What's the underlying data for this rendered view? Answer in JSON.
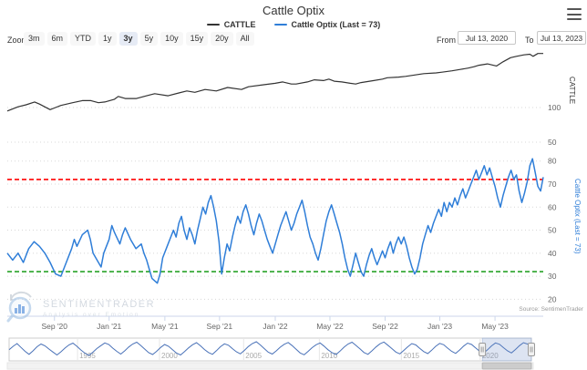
{
  "header": {
    "title": "Cattle Optix"
  },
  "legend": {
    "items": [
      {
        "label": "CATTLE",
        "color": "#333333"
      },
      {
        "label": "Cattle Optix (Last = 73)",
        "color": "#2f7ed8"
      }
    ]
  },
  "toolbar": {
    "zoom_label": "Zoom",
    "ranges": [
      "3m",
      "6m",
      "YTD",
      "1y",
      "3y",
      "5y",
      "10y",
      "15y",
      "20y",
      "All"
    ],
    "selected": "3y",
    "from_label": "From",
    "from_value": "Jul 13, 2020",
    "to_label": "To",
    "to_value": "Jul 13, 2023"
  },
  "source": "Source: SentimenTrader",
  "watermark": {
    "name": "SENTIMENTRADER",
    "tagline": "Analysis over Emotion"
  },
  "chart_data": {
    "type": "line",
    "title": "Cattle Optix",
    "x_range": [
      "Jul 13, 2020",
      "Jul 13, 2023"
    ],
    "grid": "dotted",
    "x_ticks": [
      {
        "label": "Sep '20",
        "f": 0.088
      },
      {
        "label": "Jan '21",
        "f": 0.19
      },
      {
        "label": "May '21",
        "f": 0.294
      },
      {
        "label": "Sep '21",
        "f": 0.396
      },
      {
        "label": "Jan '22",
        "f": 0.5
      },
      {
        "label": "May '22",
        "f": 0.602
      },
      {
        "label": "Sep '22",
        "f": 0.705
      },
      {
        "label": "Jan '23",
        "f": 0.807
      },
      {
        "label": "May '23",
        "f": 0.91
      }
    ],
    "axes": {
      "cattle": {
        "title": "CATTLE",
        "side": "right",
        "ticks": [
          50,
          100
        ],
        "color": "#333333"
      },
      "optix": {
        "title": "Cattle Optix (Last = 73)",
        "side": "right",
        "ticks": [
          20,
          30,
          40,
          50,
          60,
          70,
          80
        ],
        "color": "#2f7ed8"
      }
    },
    "reference_lines": [
      {
        "axis": "optix",
        "value": 72,
        "color": "#ff0000",
        "style": "dashed",
        "name": "excess-optimism"
      },
      {
        "axis": "optix",
        "value": 32,
        "color": "#28a228",
        "style": "dashed",
        "name": "excess-pessimism"
      }
    ],
    "series": [
      {
        "name": "CATTLE",
        "color": "#333333",
        "axis": "cattle",
        "last": 178,
        "points": [
          [
            0,
            95
          ],
          [
            0.02,
            101
          ],
          [
            0.035,
            104
          ],
          [
            0.051,
            108
          ],
          [
            0.06,
            105
          ],
          [
            0.08,
            97
          ],
          [
            0.09,
            100
          ],
          [
            0.1,
            103
          ],
          [
            0.122,
            107
          ],
          [
            0.14,
            110
          ],
          [
            0.156,
            110
          ],
          [
            0.17,
            107
          ],
          [
            0.182,
            108
          ],
          [
            0.2,
            112
          ],
          [
            0.207,
            116
          ],
          [
            0.22,
            113
          ],
          [
            0.241,
            113
          ],
          [
            0.26,
            117
          ],
          [
            0.275,
            120
          ],
          [
            0.3,
            117
          ],
          [
            0.32,
            121
          ],
          [
            0.335,
            124
          ],
          [
            0.35,
            122
          ],
          [
            0.369,
            126
          ],
          [
            0.39,
            124
          ],
          [
            0.411,
            129
          ],
          [
            0.437,
            126
          ],
          [
            0.45,
            130
          ],
          [
            0.48,
            133
          ],
          [
            0.5,
            135
          ],
          [
            0.514,
            137
          ],
          [
            0.53,
            134
          ],
          [
            0.539,
            134
          ],
          [
            0.56,
            137
          ],
          [
            0.573,
            140
          ],
          [
            0.59,
            139
          ],
          [
            0.6,
            141
          ],
          [
            0.61,
            138
          ],
          [
            0.624,
            137
          ],
          [
            0.64,
            135
          ],
          [
            0.65,
            134
          ],
          [
            0.66,
            136
          ],
          [
            0.684,
            139
          ],
          [
            0.7,
            141
          ],
          [
            0.709,
            143
          ],
          [
            0.73,
            144
          ],
          [
            0.743,
            145
          ],
          [
            0.76,
            147
          ],
          [
            0.777,
            149
          ],
          [
            0.8,
            150
          ],
          [
            0.811,
            151
          ],
          [
            0.83,
            153
          ],
          [
            0.845,
            155
          ],
          [
            0.86,
            157
          ],
          [
            0.871,
            159
          ],
          [
            0.88,
            161
          ],
          [
            0.896,
            163
          ],
          [
            0.913,
            160
          ],
          [
            0.925,
            166
          ],
          [
            0.939,
            172
          ],
          [
            0.95,
            174
          ],
          [
            0.964,
            176
          ],
          [
            0.975,
            177
          ],
          [
            0.981,
            174
          ],
          [
            0.99,
            178
          ],
          [
            1,
            178
          ]
        ]
      },
      {
        "name": "Cattle Optix (Last = 73)",
        "color": "#2f7ed8",
        "axis": "optix",
        "last": 73,
        "points": [
          [
            0,
            40
          ],
          [
            0.01,
            37
          ],
          [
            0.02,
            40
          ],
          [
            0.03,
            36
          ],
          [
            0.04,
            42
          ],
          [
            0.05,
            45
          ],
          [
            0.06,
            43
          ],
          [
            0.07,
            40
          ],
          [
            0.08,
            36
          ],
          [
            0.09,
            31
          ],
          [
            0.1,
            30
          ],
          [
            0.11,
            36
          ],
          [
            0.12,
            42
          ],
          [
            0.125,
            46
          ],
          [
            0.13,
            43
          ],
          [
            0.14,
            48
          ],
          [
            0.15,
            50
          ],
          [
            0.155,
            46
          ],
          [
            0.16,
            40
          ],
          [
            0.17,
            36
          ],
          [
            0.175,
            34
          ],
          [
            0.18,
            40
          ],
          [
            0.19,
            46
          ],
          [
            0.195,
            52
          ],
          [
            0.2,
            49
          ],
          [
            0.21,
            44
          ],
          [
            0.215,
            48
          ],
          [
            0.22,
            51
          ],
          [
            0.23,
            46
          ],
          [
            0.24,
            42
          ],
          [
            0.25,
            44
          ],
          [
            0.255,
            40
          ],
          [
            0.26,
            37
          ],
          [
            0.265,
            33
          ],
          [
            0.27,
            29
          ],
          [
            0.28,
            27
          ],
          [
            0.285,
            31
          ],
          [
            0.29,
            38
          ],
          [
            0.3,
            44
          ],
          [
            0.31,
            50
          ],
          [
            0.315,
            47
          ],
          [
            0.32,
            53
          ],
          [
            0.325,
            56
          ],
          [
            0.33,
            50
          ],
          [
            0.335,
            46
          ],
          [
            0.34,
            51
          ],
          [
            0.345,
            48
          ],
          [
            0.35,
            44
          ],
          [
            0.355,
            50
          ],
          [
            0.36,
            55
          ],
          [
            0.365,
            60
          ],
          [
            0.37,
            57
          ],
          [
            0.375,
            62
          ],
          [
            0.38,
            65
          ],
          [
            0.385,
            60
          ],
          [
            0.39,
            54
          ],
          [
            0.395,
            45
          ],
          [
            0.4,
            31
          ],
          [
            0.405,
            38
          ],
          [
            0.41,
            44
          ],
          [
            0.415,
            41
          ],
          [
            0.42,
            47
          ],
          [
            0.425,
            52
          ],
          [
            0.43,
            56
          ],
          [
            0.435,
            53
          ],
          [
            0.44,
            58
          ],
          [
            0.445,
            61
          ],
          [
            0.45,
            57
          ],
          [
            0.455,
            52
          ],
          [
            0.46,
            48
          ],
          [
            0.465,
            53
          ],
          [
            0.47,
            57
          ],
          [
            0.475,
            54
          ],
          [
            0.48,
            50
          ],
          [
            0.485,
            46
          ],
          [
            0.49,
            43
          ],
          [
            0.495,
            40
          ],
          [
            0.5,
            44
          ],
          [
            0.505,
            48
          ],
          [
            0.51,
            52
          ],
          [
            0.515,
            55
          ],
          [
            0.52,
            58
          ],
          [
            0.525,
            54
          ],
          [
            0.53,
            50
          ],
          [
            0.535,
            53
          ],
          [
            0.54,
            57
          ],
          [
            0.545,
            60
          ],
          [
            0.55,
            63
          ],
          [
            0.555,
            58
          ],
          [
            0.56,
            52
          ],
          [
            0.565,
            47
          ],
          [
            0.57,
            44
          ],
          [
            0.575,
            40
          ],
          [
            0.58,
            37
          ],
          [
            0.585,
            42
          ],
          [
            0.59,
            48
          ],
          [
            0.595,
            54
          ],
          [
            0.6,
            58
          ],
          [
            0.605,
            61
          ],
          [
            0.61,
            57
          ],
          [
            0.615,
            53
          ],
          [
            0.62,
            49
          ],
          [
            0.625,
            44
          ],
          [
            0.63,
            38
          ],
          [
            0.635,
            33
          ],
          [
            0.64,
            30
          ],
          [
            0.645,
            35
          ],
          [
            0.65,
            40
          ],
          [
            0.655,
            36
          ],
          [
            0.66,
            32
          ],
          [
            0.665,
            30
          ],
          [
            0.67,
            35
          ],
          [
            0.675,
            39
          ],
          [
            0.68,
            42
          ],
          [
            0.685,
            38
          ],
          [
            0.69,
            35
          ],
          [
            0.695,
            38
          ],
          [
            0.7,
            41
          ],
          [
            0.705,
            38
          ],
          [
            0.71,
            42
          ],
          [
            0.715,
            45
          ],
          [
            0.72,
            40
          ],
          [
            0.725,
            44
          ],
          [
            0.73,
            47
          ],
          [
            0.735,
            44
          ],
          [
            0.74,
            47
          ],
          [
            0.745,
            43
          ],
          [
            0.75,
            38
          ],
          [
            0.755,
            34
          ],
          [
            0.76,
            31
          ],
          [
            0.765,
            33
          ],
          [
            0.77,
            38
          ],
          [
            0.775,
            44
          ],
          [
            0.78,
            48
          ],
          [
            0.785,
            52
          ],
          [
            0.79,
            49
          ],
          [
            0.795,
            53
          ],
          [
            0.8,
            56
          ],
          [
            0.805,
            59
          ],
          [
            0.81,
            56
          ],
          [
            0.815,
            62
          ],
          [
            0.82,
            58
          ],
          [
            0.825,
            62
          ],
          [
            0.83,
            60
          ],
          [
            0.835,
            64
          ],
          [
            0.84,
            61
          ],
          [
            0.845,
            65
          ],
          [
            0.85,
            68
          ],
          [
            0.855,
            64
          ],
          [
            0.86,
            67
          ],
          [
            0.865,
            70
          ],
          [
            0.87,
            73
          ],
          [
            0.875,
            76
          ],
          [
            0.88,
            72
          ],
          [
            0.885,
            75
          ],
          [
            0.89,
            78
          ],
          [
            0.895,
            74
          ],
          [
            0.9,
            77
          ],
          [
            0.905,
            73
          ],
          [
            0.91,
            69
          ],
          [
            0.915,
            64
          ],
          [
            0.92,
            60
          ],
          [
            0.925,
            65
          ],
          [
            0.93,
            69
          ],
          [
            0.935,
            73
          ],
          [
            0.94,
            76
          ],
          [
            0.945,
            72
          ],
          [
            0.95,
            74
          ],
          [
            0.955,
            67
          ],
          [
            0.96,
            62
          ],
          [
            0.965,
            66
          ],
          [
            0.97,
            71
          ],
          [
            0.975,
            78
          ],
          [
            0.98,
            81
          ],
          [
            0.985,
            75
          ],
          [
            0.99,
            69
          ],
          [
            0.995,
            67
          ],
          [
            1,
            73
          ]
        ]
      }
    ]
  },
  "navigator": {
    "line_color": "#4a72b8",
    "selection_color": "rgba(102,133,194,0.22)",
    "selection": {
      "from_f": 0.906,
      "to_f": 1.0
    },
    "x_ticks": [
      {
        "label": "1995",
        "f": 0.131
      },
      {
        "label": "2000",
        "f": 0.288
      },
      {
        "label": "2005",
        "f": 0.449
      },
      {
        "label": "2010",
        "f": 0.594
      },
      {
        "label": "2015",
        "f": 0.751
      },
      {
        "label": "2020",
        "f": 0.902
      }
    ],
    "values": [
      45,
      60,
      72,
      55,
      38,
      25,
      40,
      58,
      70,
      62,
      48,
      35,
      22,
      36,
      52,
      66,
      74,
      60,
      44,
      30,
      20,
      34,
      50,
      63,
      75,
      68,
      52,
      38,
      26,
      40,
      57,
      70,
      78,
      64,
      48,
      32,
      24,
      38,
      55,
      68,
      60,
      45,
      30,
      22,
      37,
      53,
      67,
      76,
      62,
      46,
      33,
      25,
      41,
      58,
      71,
      65,
      50,
      36,
      27,
      42,
      59,
      72,
      80,
      66,
      50,
      34,
      26,
      40,
      56,
      69,
      77,
      63,
      47,
      31,
      23,
      38,
      54,
      67,
      75,
      61,
      45,
      32,
      24,
      39,
      56,
      70,
      78,
      64,
      49,
      33,
      25,
      40,
      57,
      71,
      79,
      65,
      50,
      35,
      27,
      42,
      58,
      72,
      66,
      51,
      37,
      28,
      43,
      60,
      73,
      67,
      52,
      38,
      29,
      44,
      61,
      74,
      68,
      53,
      39,
      30,
      45,
      62,
      75,
      69,
      54,
      40,
      31,
      46,
      63,
      76,
      70,
      73
    ]
  }
}
